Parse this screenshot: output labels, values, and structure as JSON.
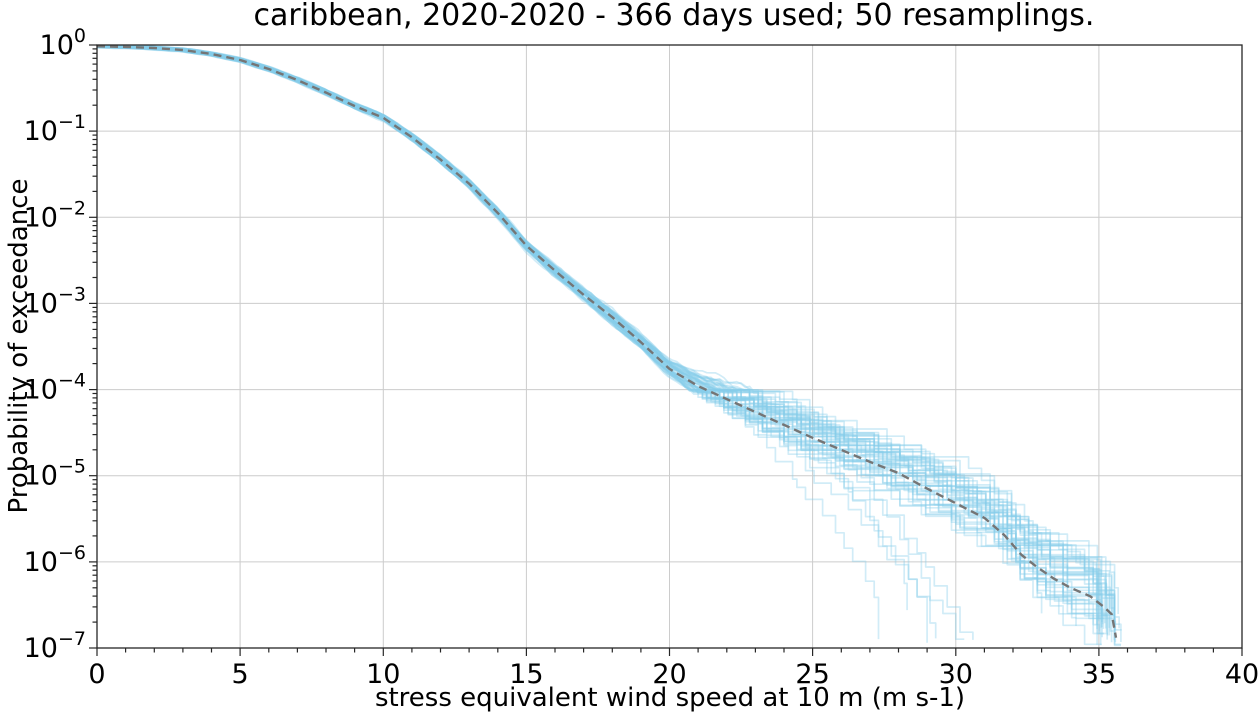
{
  "figure": {
    "background": "#ffffff"
  },
  "chart_data": {
    "type": "line",
    "title": "caribbean, 2020-2020 - 366 days used; 50 resamplings.",
    "xlabel": "stress equivalent wind speed at 10 m (m s-1)",
    "ylabel": "Probability of exceedance",
    "x_axis": {
      "min": 0,
      "max": 40,
      "major_ticks": [
        0,
        5,
        10,
        15,
        20,
        25,
        30,
        35,
        40
      ],
      "minor_step": 1
    },
    "y_axis": {
      "scale": "log",
      "min_exponent": -7,
      "max_exponent": 0,
      "tick_exponents": [
        0,
        -1,
        -2,
        -3,
        -4,
        -5,
        -6,
        -7
      ]
    },
    "grid": {
      "show": true,
      "color": "#cccccc"
    },
    "legend": "none",
    "n_resamplings": 50,
    "colors": {
      "resampling_line": "#87ceeb",
      "resampling_alpha": 0.38,
      "main_line": "#757575",
      "spine": "#262626",
      "text": "#000000"
    },
    "main_curve": {
      "name": "central estimate (dashed)",
      "x": [
        0,
        1,
        2,
        3,
        4,
        5,
        6,
        7,
        8,
        9,
        10,
        11,
        12,
        13,
        14,
        15,
        16,
        17,
        18,
        19,
        20,
        21,
        21.8,
        23,
        24,
        25,
        26,
        27,
        28,
        29,
        30,
        31,
        31.7,
        32.3,
        32.8,
        33.4,
        34,
        34.7,
        35.2,
        35.45,
        35.6
      ],
      "log10_probability": [
        -0.015,
        -0.022,
        -0.035,
        -0.058,
        -0.105,
        -0.174,
        -0.279,
        -0.407,
        -0.552,
        -0.708,
        -0.845,
        -1.07,
        -1.33,
        -1.61,
        -1.95,
        -2.33,
        -2.62,
        -2.9,
        -3.16,
        -3.45,
        -3.76,
        -3.96,
        -4.08,
        -4.26,
        -4.41,
        -4.56,
        -4.7,
        -4.84,
        -4.97,
        -5.15,
        -5.32,
        -5.49,
        -5.69,
        -5.92,
        -6.05,
        -6.19,
        -6.3,
        -6.4,
        -6.53,
        -6.61,
        -6.88
      ]
    },
    "resampling_curves": {
      "name": "bootstrap resamplings",
      "count": 50,
      "spread_sigma": {
        "x": [
          0,
          5,
          10,
          15,
          18,
          20,
          21,
          22,
          24,
          26,
          28,
          30,
          33,
          36
        ],
        "sigma": [
          0.008,
          0.012,
          0.02,
          0.03,
          0.045,
          0.05,
          0.075,
          0.095,
          0.125,
          0.145,
          0.165,
          0.185,
          0.205,
          0.215
        ]
      },
      "early_end_x": [
        27.3,
        28.3,
        29.0,
        29.3,
        30.3,
        30.6,
        33.0,
        34.2
      ],
      "main_end_x_range": [
        34.9,
        35.8
      ],
      "end_log10p_range": [
        -6.55,
        -6.97
      ]
    }
  }
}
